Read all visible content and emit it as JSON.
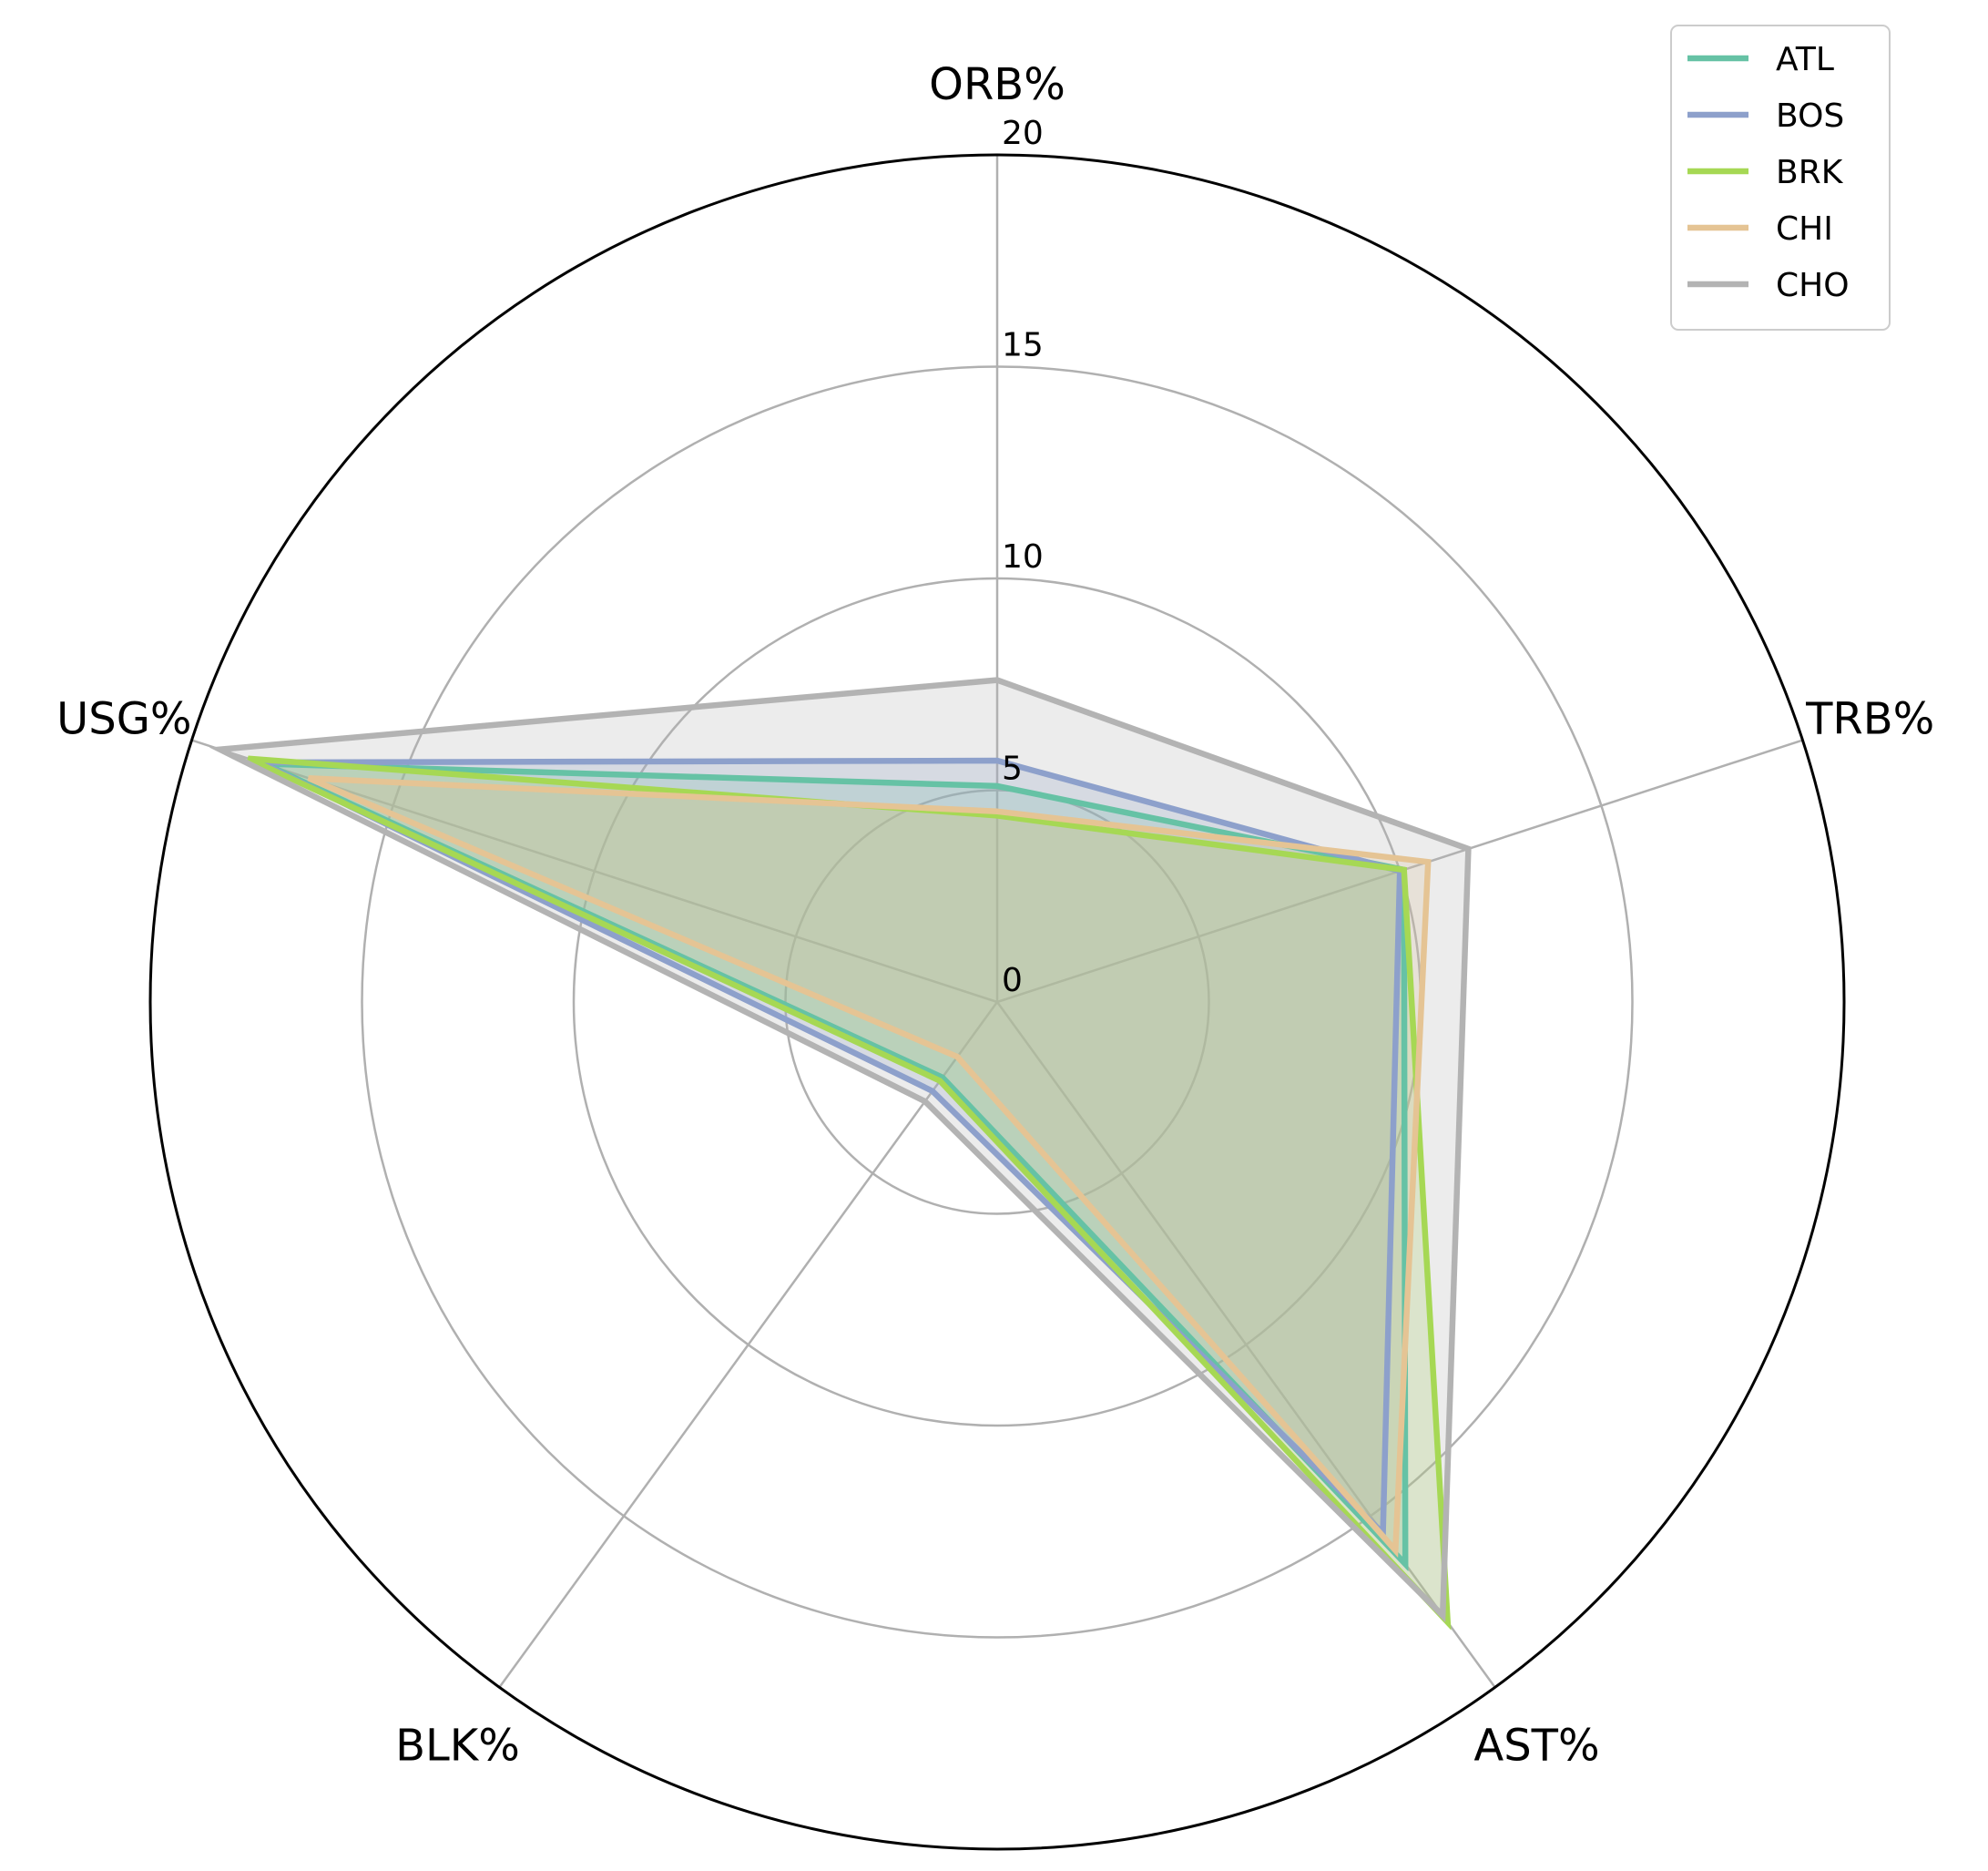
{
  "chart_data": {
    "type": "radar",
    "axes": [
      "ORB%",
      "TRB%",
      "AST%",
      "BLK%",
      "USG%"
    ],
    "rlim": [
      0,
      20
    ],
    "rticks": [
      "0",
      "5",
      "10",
      "15",
      "20"
    ],
    "grid": true,
    "legend_position": "top-right",
    "series": [
      {
        "name": "ATL",
        "color": "#66c2a5",
        "values": [
          5.1,
          10.1,
          16.4,
          2.2,
          18.2
        ]
      },
      {
        "name": "BOS",
        "color": "#8da0cb",
        "values": [
          5.7,
          10.0,
          15.5,
          2.6,
          18.3
        ]
      },
      {
        "name": "BRK",
        "color": "#a6d854",
        "values": [
          4.4,
          10.1,
          18.1,
          2.3,
          18.6
        ]
      },
      {
        "name": "CHI",
        "color": "#e5c494",
        "values": [
          4.5,
          10.7,
          16.0,
          1.6,
          17.1
        ]
      },
      {
        "name": "CHO",
        "color": "#b3b3b3",
        "values": [
          7.6,
          11.7,
          17.9,
          2.9,
          19.3
        ]
      }
    ]
  }
}
